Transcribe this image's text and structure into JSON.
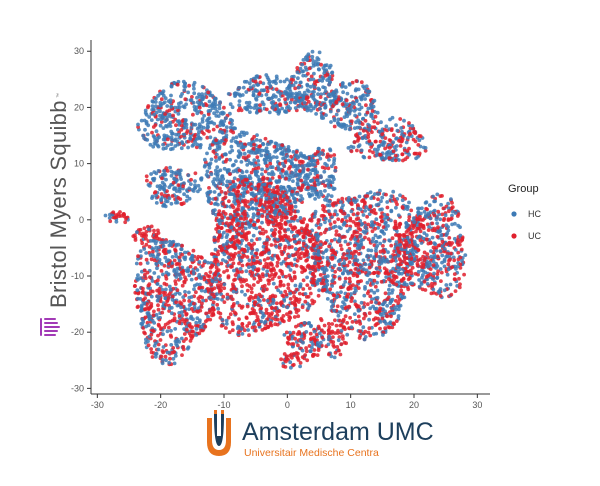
{
  "chart_data": {
    "type": "scatter",
    "title": "",
    "xlabel": "",
    "ylabel": "",
    "xlim": [
      -31,
      32
    ],
    "ylim": [
      -31,
      32
    ],
    "x_ticks": [
      -30,
      -20,
      -10,
      0,
      10,
      20,
      30
    ],
    "y_ticks": [
      -30,
      -20,
      -10,
      0,
      10,
      20,
      30
    ],
    "grid": false,
    "legend": {
      "title": "Group",
      "placement": "right",
      "entries": [
        {
          "label": "HC",
          "color": "#3d7ab5"
        },
        {
          "label": "UC",
          "color": "#e0202d"
        }
      ]
    },
    "series": [
      {
        "name": "HC",
        "color": "#3d7ab5"
      },
      {
        "name": "UC",
        "color": "#e0202d"
      }
    ],
    "clusters": [
      {
        "cx": -3,
        "cy": 22,
        "rx": 6.5,
        "ry": 3.5,
        "dominant": "HC"
      },
      {
        "cx": 4,
        "cy": 24,
        "rx": 4.0,
        "ry": 5.5,
        "dominant": "HC"
      },
      {
        "cx": 10,
        "cy": 20,
        "rx": 4.5,
        "ry": 4.5,
        "dominant": "HC"
      },
      {
        "cx": 16,
        "cy": 14,
        "rx": 6.0,
        "ry": 3.8,
        "dominant": "mixed"
      },
      {
        "cx": -16,
        "cy": 18,
        "rx": 7.5,
        "ry": 6.0,
        "dominant": "HC"
      },
      {
        "cx": -18,
        "cy": 6,
        "rx": 4.5,
        "ry": 3.5,
        "dominant": "HC"
      },
      {
        "cx": -5,
        "cy": 7,
        "rx": 9.0,
        "ry": 8.5,
        "dominant": "HC"
      },
      {
        "cx": 5,
        "cy": 8,
        "rx": 3.0,
        "ry": 5.0,
        "dominant": "HC"
      },
      {
        "cx": -27,
        "cy": 0.5,
        "rx": 2.5,
        "ry": 1.2,
        "dominant": "UC"
      },
      {
        "cx": -22,
        "cy": -3,
        "rx": 2.5,
        "ry": 1.8,
        "dominant": "UC"
      },
      {
        "cx": -4,
        "cy": -7,
        "rx": 9.0,
        "ry": 14.0,
        "dominant": "UC"
      },
      {
        "cx": -18,
        "cy": -14,
        "rx": 6.5,
        "ry": 11.0,
        "dominant": "mixed"
      },
      {
        "cx": 12,
        "cy": -7,
        "rx": 9.0,
        "ry": 13.0,
        "dominant": "mixed"
      },
      {
        "cx": 23,
        "cy": -5,
        "rx": 5.5,
        "ry": 9.0,
        "dominant": "mixed"
      },
      {
        "cx": 5,
        "cy": -21,
        "rx": 5.0,
        "ry": 3.5,
        "dominant": "UC"
      },
      {
        "cx": 1,
        "cy": -25,
        "rx": 2.5,
        "ry": 1.5,
        "dominant": "mixed"
      }
    ]
  },
  "logos": {
    "bms": {
      "text": "Bristol Myers Squibb",
      "tm": "™"
    },
    "amsterdam": {
      "name": "Amsterdam UMC",
      "subtitle": "Universitair Medische Centra"
    }
  },
  "colors": {
    "hc": "#3d7ab5",
    "uc": "#e0202d",
    "bms_purple": "#a23ab6",
    "amc_navy": "#1d3f5c",
    "amc_orange": "#e8731e"
  }
}
